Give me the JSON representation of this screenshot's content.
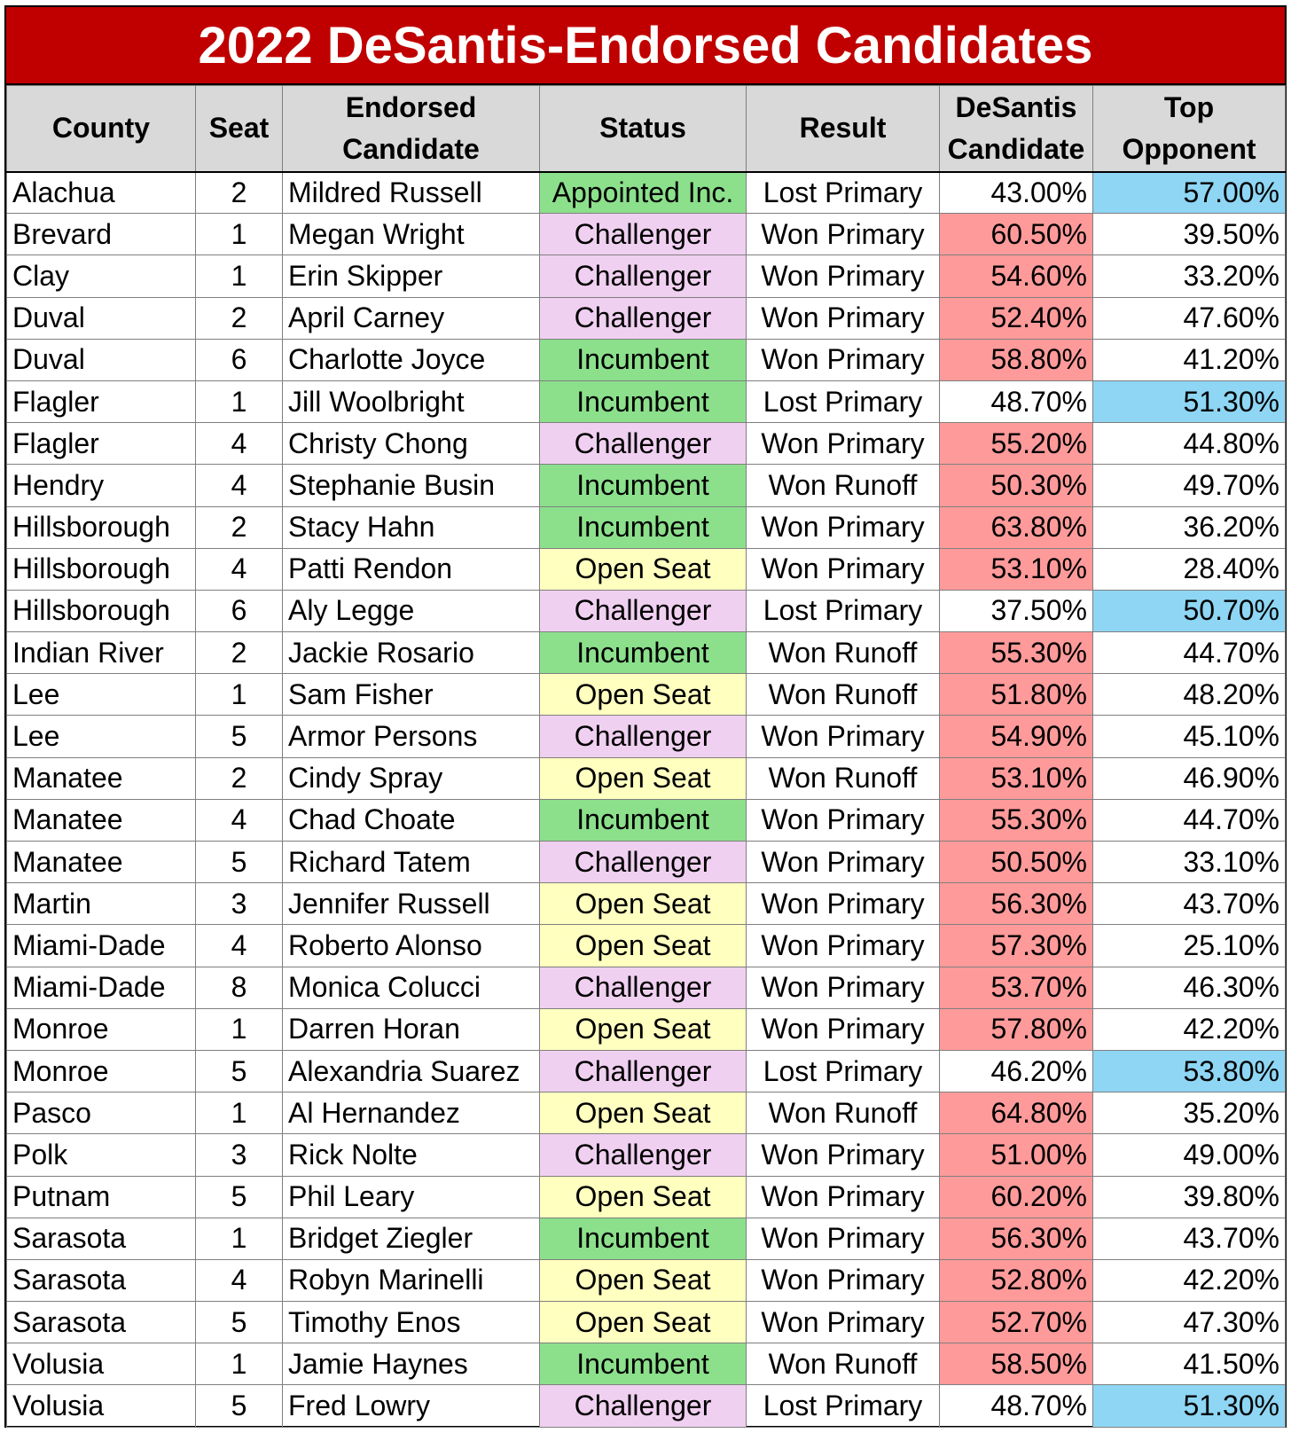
{
  "title": "2022 DeSantis-Endorsed Candidates",
  "headers": {
    "county": "County",
    "seat": "Seat",
    "candidate": "Endorsed Candidate",
    "status": "Status",
    "result": "Result",
    "desantis_pct": "DeSantis Candidate",
    "opponent_pct": "Top Opponent"
  },
  "colors": {
    "title_bg": "#c00000",
    "header_bg": "#d9d9d9",
    "incumbent": "#8ce08c",
    "challenger": "#f0d0f0",
    "open_seat": "#ffffc0",
    "desantis_win": "#ff9a9a",
    "opponent_win": "#8ed6f4"
  },
  "rows": [
    {
      "county": "Alachua",
      "seat": "2",
      "candidate": "Mildred Russell",
      "status": "Appointed Inc.",
      "result": "Lost Primary",
      "desantis_pct": "43.00%",
      "opponent_pct": "57.00%"
    },
    {
      "county": "Brevard",
      "seat": "1",
      "candidate": "Megan Wright",
      "status": "Challenger",
      "result": "Won Primary",
      "desantis_pct": "60.50%",
      "opponent_pct": "39.50%"
    },
    {
      "county": "Clay",
      "seat": "1",
      "candidate": "Erin Skipper",
      "status": "Challenger",
      "result": "Won Primary",
      "desantis_pct": "54.60%",
      "opponent_pct": "33.20%"
    },
    {
      "county": "Duval",
      "seat": "2",
      "candidate": "April Carney",
      "status": "Challenger",
      "result": "Won Primary",
      "desantis_pct": "52.40%",
      "opponent_pct": "47.60%"
    },
    {
      "county": "Duval",
      "seat": "6",
      "candidate": "Charlotte Joyce",
      "status": "Incumbent",
      "result": "Won Primary",
      "desantis_pct": "58.80%",
      "opponent_pct": "41.20%"
    },
    {
      "county": "Flagler",
      "seat": "1",
      "candidate": "Jill Woolbright",
      "status": "Incumbent",
      "result": "Lost Primary",
      "desantis_pct": "48.70%",
      "opponent_pct": "51.30%"
    },
    {
      "county": "Flagler",
      "seat": "4",
      "candidate": "Christy Chong",
      "status": "Challenger",
      "result": "Won Primary",
      "desantis_pct": "55.20%",
      "opponent_pct": "44.80%"
    },
    {
      "county": "Hendry",
      "seat": "4",
      "candidate": "Stephanie Busin",
      "status": "Incumbent",
      "result": "Won Runoff",
      "desantis_pct": "50.30%",
      "opponent_pct": "49.70%"
    },
    {
      "county": "Hillsborough",
      "seat": "2",
      "candidate": "Stacy Hahn",
      "status": "Incumbent",
      "result": "Won Primary",
      "desantis_pct": "63.80%",
      "opponent_pct": "36.20%"
    },
    {
      "county": "Hillsborough",
      "seat": "4",
      "candidate": "Patti Rendon",
      "status": "Open Seat",
      "result": "Won Primary",
      "desantis_pct": "53.10%",
      "opponent_pct": "28.40%"
    },
    {
      "county": "Hillsborough",
      "seat": "6",
      "candidate": "Aly Legge",
      "status": "Challenger",
      "result": "Lost Primary",
      "desantis_pct": "37.50%",
      "opponent_pct": "50.70%"
    },
    {
      "county": "Indian River",
      "seat": "2",
      "candidate": "Jackie Rosario",
      "status": "Incumbent",
      "result": "Won Runoff",
      "desantis_pct": "55.30%",
      "opponent_pct": "44.70%"
    },
    {
      "county": "Lee",
      "seat": "1",
      "candidate": "Sam Fisher",
      "status": "Open Seat",
      "result": "Won Runoff",
      "desantis_pct": "51.80%",
      "opponent_pct": "48.20%"
    },
    {
      "county": "Lee",
      "seat": "5",
      "candidate": "Armor Persons",
      "status": "Challenger",
      "result": "Won Primary",
      "desantis_pct": "54.90%",
      "opponent_pct": "45.10%"
    },
    {
      "county": "Manatee",
      "seat": "2",
      "candidate": "Cindy Spray",
      "status": "Open Seat",
      "result": "Won Runoff",
      "desantis_pct": "53.10%",
      "opponent_pct": "46.90%"
    },
    {
      "county": "Manatee",
      "seat": "4",
      "candidate": "Chad Choate",
      "status": "Incumbent",
      "result": "Won Primary",
      "desantis_pct": "55.30%",
      "opponent_pct": "44.70%"
    },
    {
      "county": "Manatee",
      "seat": "5",
      "candidate": "Richard Tatem",
      "status": "Challenger",
      "result": "Won Primary",
      "desantis_pct": "50.50%",
      "opponent_pct": "33.10%"
    },
    {
      "county": "Martin",
      "seat": "3",
      "candidate": "Jennifer Russell",
      "status": "Open Seat",
      "result": "Won Primary",
      "desantis_pct": "56.30%",
      "opponent_pct": "43.70%"
    },
    {
      "county": "Miami-Dade",
      "seat": "4",
      "candidate": "Roberto Alonso",
      "status": "Open Seat",
      "result": "Won Primary",
      "desantis_pct": "57.30%",
      "opponent_pct": "25.10%"
    },
    {
      "county": "Miami-Dade",
      "seat": "8",
      "candidate": "Monica Colucci",
      "status": "Challenger",
      "result": "Won Primary",
      "desantis_pct": "53.70%",
      "opponent_pct": "46.30%"
    },
    {
      "county": "Monroe",
      "seat": "1",
      "candidate": "Darren Horan",
      "status": "Open Seat",
      "result": "Won Primary",
      "desantis_pct": "57.80%",
      "opponent_pct": "42.20%"
    },
    {
      "county": "Monroe",
      "seat": "5",
      "candidate": "Alexandria Suarez",
      "status": "Challenger",
      "result": "Lost Primary",
      "desantis_pct": "46.20%",
      "opponent_pct": "53.80%"
    },
    {
      "county": "Pasco",
      "seat": "1",
      "candidate": "Al Hernandez",
      "status": "Open Seat",
      "result": "Won Runoff",
      "desantis_pct": "64.80%",
      "opponent_pct": "35.20%"
    },
    {
      "county": "Polk",
      "seat": "3",
      "candidate": "Rick Nolte",
      "status": "Challenger",
      "result": "Won Primary",
      "desantis_pct": "51.00%",
      "opponent_pct": "49.00%"
    },
    {
      "county": "Putnam",
      "seat": "5",
      "candidate": "Phil Leary",
      "status": "Open Seat",
      "result": "Won Primary",
      "desantis_pct": "60.20%",
      "opponent_pct": "39.80%"
    },
    {
      "county": "Sarasota",
      "seat": "1",
      "candidate": "Bridget Ziegler",
      "status": "Incumbent",
      "result": "Won Primary",
      "desantis_pct": "56.30%",
      "opponent_pct": "43.70%"
    },
    {
      "county": "Sarasota",
      "seat": "4",
      "candidate": "Robyn Marinelli",
      "status": "Open Seat",
      "result": "Won Primary",
      "desantis_pct": "52.80%",
      "opponent_pct": "42.20%"
    },
    {
      "county": "Sarasota",
      "seat": "5",
      "candidate": "Timothy Enos",
      "status": "Open Seat",
      "result": "Won Primary",
      "desantis_pct": "52.70%",
      "opponent_pct": "47.30%"
    },
    {
      "county": "Volusia",
      "seat": "1",
      "candidate": "Jamie Haynes",
      "status": "Incumbent",
      "result": "Won Runoff",
      "desantis_pct": "58.50%",
      "opponent_pct": "41.50%"
    },
    {
      "county": "Volusia",
      "seat": "5",
      "candidate": "Fred Lowry",
      "status": "Challenger",
      "result": "Lost Primary",
      "desantis_pct": "48.70%",
      "opponent_pct": "51.30%"
    }
  ]
}
